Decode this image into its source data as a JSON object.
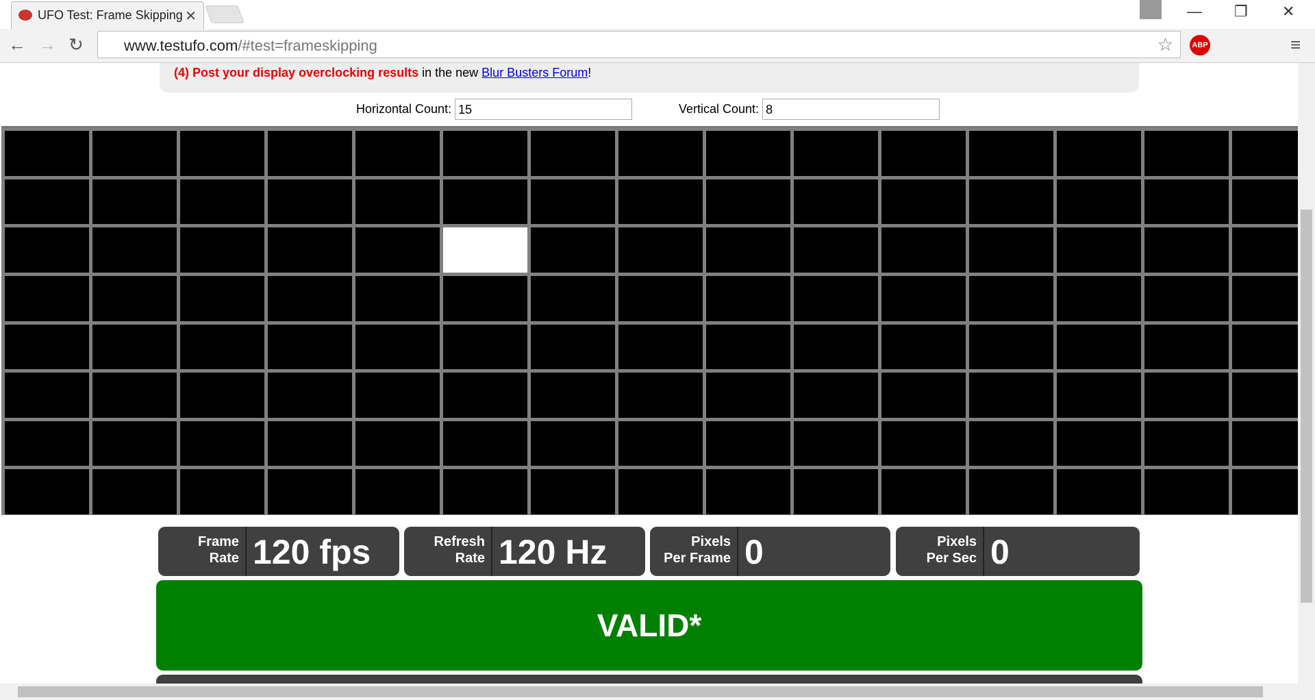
{
  "browser": {
    "tab_title": "UFO Test: Frame Skipping",
    "url_host": "www.testufo.com",
    "url_path": "/#test=frameskipping"
  },
  "info": {
    "bold_text": "(4) Post your display overclocking results",
    "middle_text": " in the new ",
    "link_text": "Blur Busters Forum",
    "end_text": "!"
  },
  "controls": {
    "horizontal_label": "Horizontal Count:",
    "horizontal_value": "15",
    "vertical_label": "Vertical Count:",
    "vertical_value": "8"
  },
  "stats": [
    {
      "label_lines": [
        "Frame",
        "Rate"
      ],
      "value": "120 fps"
    },
    {
      "label_lines": [
        "Refresh",
        "Rate"
      ],
      "value": "120 Hz"
    },
    {
      "label_lines": [
        "Pixels",
        "Per Frame"
      ],
      "value": "0"
    },
    {
      "label_lines": [
        "Pixels",
        "Per Sec"
      ],
      "value": "0"
    }
  ],
  "status": "VALID*"
}
